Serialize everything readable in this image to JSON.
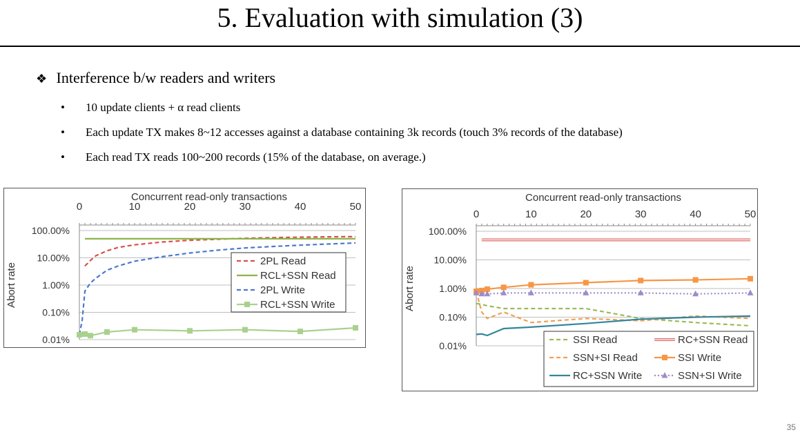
{
  "slide": {
    "title": "5. Evaluation with simulation (3)",
    "heading": "Interference b/w readers and writers",
    "heading_marker": "❖",
    "bullet_marker": "•",
    "bullets": [
      "10 update clients + α read clients",
      "Each update TX makes 8~12 accesses against a database containing 3k records (touch 3% records of the database)",
      "Each read TX reads 100~200 records (15% of the database, on average.)"
    ],
    "page_number": "35"
  },
  "chart_data": [
    {
      "type": "line",
      "xlabel": "Concurrent read-only transactions",
      "ylabel": "Abort rate",
      "x_axis_position": "top",
      "y_scale": "log",
      "ylim": [
        0.01,
        100
      ],
      "xlim": [
        0,
        50
      ],
      "x_ticks": [
        "0",
        "10",
        "20",
        "30",
        "40",
        "50"
      ],
      "y_ticks": [
        "0.01%",
        "0.10%",
        "1.00%",
        "10.00%",
        "100.00%"
      ],
      "grid": true,
      "legend": "right-middle",
      "series": [
        {
          "name": "2PL Read",
          "color": "#d9504a",
          "style": "dash",
          "x": [
            0,
            1,
            2,
            3,
            5,
            7,
            10,
            15,
            20,
            25,
            30,
            35,
            40,
            45,
            50
          ],
          "y": [
            null,
            5,
            8,
            12,
            18,
            24,
            30,
            38,
            44,
            48,
            52,
            55,
            57,
            59,
            60
          ]
        },
        {
          "name": "RCL+SSN Read",
          "color": "#8db44a",
          "style": "solid",
          "x": [
            1,
            5,
            10,
            20,
            30,
            40,
            50
          ],
          "y": [
            50,
            50,
            50,
            50,
            50,
            50,
            50
          ]
        },
        {
          "name": "2PL Write",
          "color": "#4a78d0",
          "style": "dash",
          "x": [
            0,
            0.5,
            1,
            2,
            3,
            5,
            7,
            10,
            15,
            20,
            25,
            30,
            35,
            40,
            45,
            50
          ],
          "y": [
            0.015,
            0.05,
            0.6,
            1.2,
            1.8,
            3.5,
            5,
            7.5,
            11,
            15,
            19,
            23,
            26,
            29,
            32,
            35
          ]
        },
        {
          "name": "RCL+SSN Write",
          "color": "#a9d18e",
          "style": "solid-square",
          "x": [
            0,
            1,
            2,
            5,
            10,
            20,
            30,
            40,
            50
          ],
          "y": [
            0.015,
            0.016,
            0.014,
            0.019,
            0.023,
            0.021,
            0.023,
            0.02,
            0.027
          ]
        }
      ]
    },
    {
      "type": "line",
      "xlabel": "Concurrent read-only transactions",
      "ylabel": "Abort rate",
      "x_axis_position": "top",
      "y_scale": "log",
      "ylim": [
        0.01,
        100
      ],
      "xlim": [
        0,
        50
      ],
      "x_ticks": [
        "0",
        "10",
        "20",
        "30",
        "40",
        "50"
      ],
      "y_ticks": [
        "0.01%",
        "0.10%",
        "1.00%",
        "10.00%",
        "100.00%"
      ],
      "grid": true,
      "legend": "bottom",
      "series": [
        {
          "name": "SSI Read",
          "color": "#9bbb59",
          "style": "dash",
          "x": [
            0,
            1,
            2,
            5,
            10,
            20,
            30,
            40,
            50
          ],
          "y": [
            0.3,
            0.28,
            0.25,
            0.2,
            0.2,
            0.2,
            0.09,
            0.065,
            0.05
          ]
        },
        {
          "name": "RC+SSN Read",
          "color": "#e07070",
          "style": "double",
          "x": [
            1,
            10,
            20,
            30,
            40,
            50
          ],
          "y": [
            50,
            50,
            50,
            50,
            50,
            50
          ]
        },
        {
          "name": "SSN+SI Read",
          "color": "#f0a050",
          "style": "dash",
          "x": [
            0,
            1,
            2,
            5,
            10,
            20,
            30,
            40,
            50
          ],
          "y": [
            0.8,
            0.15,
            0.09,
            0.15,
            0.065,
            0.09,
            0.075,
            0.11,
            0.09
          ]
        },
        {
          "name": "SSI Write",
          "color": "#f79646",
          "style": "solid-square",
          "x": [
            0,
            1,
            2,
            5,
            10,
            20,
            30,
            40,
            50
          ],
          "y": [
            0.8,
            0.85,
            0.95,
            1.1,
            1.35,
            1.6,
            1.9,
            2.0,
            2.2
          ]
        },
        {
          "name": "RC+SSN Write",
          "color": "#31859c",
          "style": "solid",
          "x": [
            0,
            1,
            2,
            5,
            10,
            20,
            30,
            40,
            50
          ],
          "y": [
            0.025,
            0.026,
            0.023,
            0.04,
            0.045,
            0.06,
            0.085,
            0.1,
            0.11
          ]
        },
        {
          "name": "SSN+SI Write",
          "color": "#9e8cc8",
          "style": "dot-triangle",
          "x": [
            0,
            1,
            2,
            5,
            10,
            20,
            30,
            40,
            50
          ],
          "y": [
            0.7,
            0.65,
            0.65,
            0.7,
            0.7,
            0.7,
            0.7,
            0.65,
            0.7
          ]
        }
      ]
    }
  ]
}
